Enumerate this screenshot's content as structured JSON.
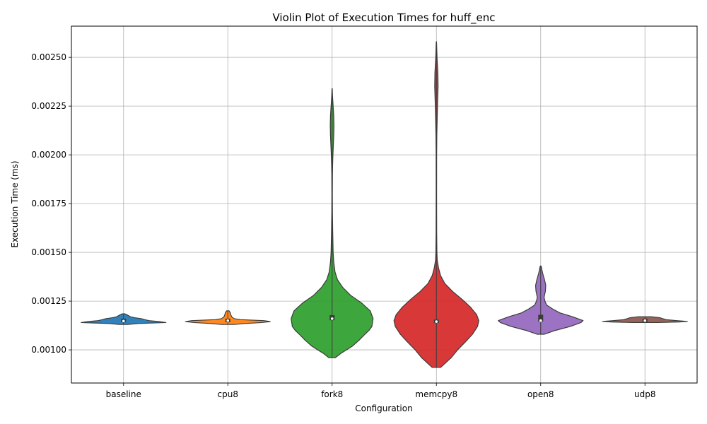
{
  "chart_data": {
    "type": "violin",
    "title": "Violin Plot of Execution Times for huff_enc",
    "xlabel": "Configuration",
    "ylabel": "Execution Time (ms)",
    "ylim": [
      0.00083,
      0.00266
    ],
    "yticks": [
      "0.00100",
      "0.00125",
      "0.00150",
      "0.00175",
      "0.00200",
      "0.00225",
      "0.00250"
    ],
    "grid": true,
    "categories": [
      "baseline",
      "cpu8",
      "fork8",
      "memcpy8",
      "open8",
      "udp8"
    ],
    "series": [
      {
        "category": "baseline",
        "color": "#1f77b4",
        "min": 0.00113,
        "max": 0.001185,
        "q1": 0.001142,
        "median": 0.001148,
        "q3": 0.00116,
        "density": [
          [
            0.00113,
            0.1
          ],
          [
            0.001135,
            0.35
          ],
          [
            0.00114,
            1.0
          ],
          [
            0.001145,
            0.85
          ],
          [
            0.00115,
            0.6
          ],
          [
            0.001155,
            0.5
          ],
          [
            0.00116,
            0.42
          ],
          [
            0.001165,
            0.26
          ],
          [
            0.00117,
            0.16
          ],
          [
            0.001175,
            0.12
          ],
          [
            0.00118,
            0.08
          ],
          [
            0.001185,
            0.03
          ]
        ],
        "max_half_width": 60
      },
      {
        "category": "cpu8",
        "color": "#ff7f0e",
        "min": 0.00113,
        "max": 0.0012,
        "q1": 0.001142,
        "median": 0.00115,
        "q3": 0.00116,
        "density": [
          [
            0.00113,
            0.15
          ],
          [
            0.001135,
            0.4
          ],
          [
            0.00114,
            0.8
          ],
          [
            0.001145,
            1.0
          ],
          [
            0.00115,
            0.85
          ],
          [
            0.001155,
            0.3
          ],
          [
            0.00116,
            0.15
          ],
          [
            0.00117,
            0.09
          ],
          [
            0.00118,
            0.07
          ],
          [
            0.00119,
            0.06
          ],
          [
            0.0012,
            0.03
          ]
        ],
        "max_half_width": 60
      },
      {
        "category": "fork8",
        "color": "#2ca02c",
        "min": 0.00096,
        "max": 0.00234,
        "q1": 0.001152,
        "median": 0.00116,
        "q3": 0.001178,
        "density": [
          [
            0.00096,
            0.08
          ],
          [
            0.00098,
            0.2
          ],
          [
            0.001,
            0.35
          ],
          [
            0.00102,
            0.5
          ],
          [
            0.00105,
            0.66
          ],
          [
            0.00108,
            0.8
          ],
          [
            0.0011,
            0.9
          ],
          [
            0.00112,
            0.97
          ],
          [
            0.00116,
            1.0
          ],
          [
            0.0012,
            0.93
          ],
          [
            0.00124,
            0.72
          ],
          [
            0.00128,
            0.45
          ],
          [
            0.00132,
            0.26
          ],
          [
            0.00136,
            0.13
          ],
          [
            0.0014,
            0.07
          ],
          [
            0.00145,
            0.04
          ],
          [
            0.0015,
            0.025
          ],
          [
            0.0016,
            0.015
          ],
          [
            0.0017,
            0.008
          ],
          [
            0.0018,
            0.006
          ],
          [
            0.0019,
            0.008
          ],
          [
            0.00195,
            0.012
          ],
          [
            0.002,
            0.02
          ],
          [
            0.00205,
            0.03
          ],
          [
            0.0021,
            0.04
          ],
          [
            0.00215,
            0.045
          ],
          [
            0.0022,
            0.04
          ],
          [
            0.00225,
            0.025
          ],
          [
            0.0023,
            0.01
          ],
          [
            0.00234,
            0.003
          ]
        ],
        "max_half_width": 58
      },
      {
        "category": "memcpy8",
        "color": "#d62728",
        "min": 0.00091,
        "max": 0.00258,
        "q1": 0.001138,
        "median": 0.001145,
        "q3": 0.001155,
        "density": [
          [
            0.00091,
            0.1
          ],
          [
            0.00093,
            0.2
          ],
          [
            0.00096,
            0.35
          ],
          [
            0.001,
            0.5
          ],
          [
            0.00104,
            0.68
          ],
          [
            0.00108,
            0.85
          ],
          [
            0.00112,
            0.97
          ],
          [
            0.00115,
            1.0
          ],
          [
            0.00118,
            0.95
          ],
          [
            0.00122,
            0.8
          ],
          [
            0.00126,
            0.6
          ],
          [
            0.0013,
            0.38
          ],
          [
            0.00134,
            0.2
          ],
          [
            0.00138,
            0.1
          ],
          [
            0.00142,
            0.05
          ],
          [
            0.00146,
            0.02
          ],
          [
            0.0015,
            0.012
          ],
          [
            0.0016,
            0.007
          ],
          [
            0.0018,
            0.005
          ],
          [
            0.002,
            0.006
          ],
          [
            0.0021,
            0.01
          ],
          [
            0.0022,
            0.02
          ],
          [
            0.00228,
            0.03
          ],
          [
            0.00235,
            0.04
          ],
          [
            0.00242,
            0.035
          ],
          [
            0.0025,
            0.015
          ],
          [
            0.00258,
            0.003
          ]
        ],
        "max_half_width": 60
      },
      {
        "category": "open8",
        "color": "#9467bd",
        "min": 0.00108,
        "max": 0.00143,
        "q1": 0.001145,
        "median": 0.00115,
        "q3": 0.00118,
        "density": [
          [
            0.00108,
            0.08
          ],
          [
            0.0011,
            0.35
          ],
          [
            0.00112,
            0.7
          ],
          [
            0.00114,
            0.95
          ],
          [
            0.00115,
            1.0
          ],
          [
            0.00117,
            0.75
          ],
          [
            0.00119,
            0.45
          ],
          [
            0.00121,
            0.28
          ],
          [
            0.00123,
            0.14
          ],
          [
            0.00125,
            0.1
          ],
          [
            0.00127,
            0.08
          ],
          [
            0.0013,
            0.11
          ],
          [
            0.00133,
            0.12
          ],
          [
            0.00136,
            0.09
          ],
          [
            0.00139,
            0.05
          ],
          [
            0.00141,
            0.03
          ],
          [
            0.00143,
            0.01
          ]
        ],
        "max_half_width": 60
      },
      {
        "category": "udp8",
        "color": "#8c564b",
        "min": 0.00114,
        "max": 0.00117,
        "q1": 0.001143,
        "median": 0.00115,
        "q3": 0.00116,
        "density": [
          [
            0.00114,
            0.3
          ],
          [
            0.001143,
            0.8
          ],
          [
            0.001146,
            1.0
          ],
          [
            0.00115,
            0.75
          ],
          [
            0.001155,
            0.5
          ],
          [
            0.00116,
            0.42
          ],
          [
            0.001165,
            0.35
          ],
          [
            0.00117,
            0.15
          ]
        ],
        "max_half_width": 60
      }
    ]
  }
}
